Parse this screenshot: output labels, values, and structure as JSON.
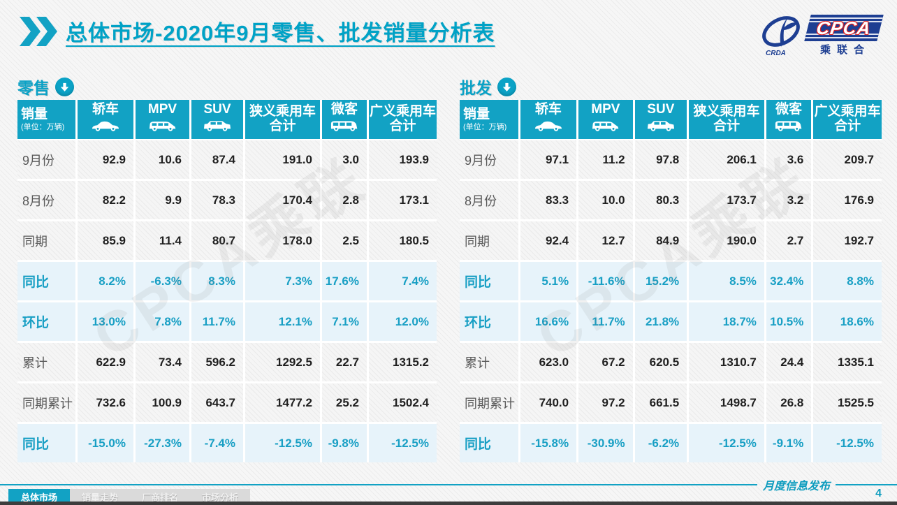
{
  "title": "总体市场-2020年9月零售、批发销量分析表",
  "logo": {
    "cpca": "CPCA",
    "crda": "CRDA",
    "subtitle": "乘联合"
  },
  "watermark": "CPCA乘联",
  "columns": [
    {
      "key": "sales",
      "label": "销量",
      "sublabel": "(单位：万辆)",
      "icon": null
    },
    {
      "key": "sedan",
      "label": "轿车",
      "icon": "sedan-icon"
    },
    {
      "key": "mpv",
      "label": "MPV",
      "icon": "mpv-icon"
    },
    {
      "key": "suv",
      "label": "SUV",
      "icon": "suv-icon"
    },
    {
      "key": "narrow",
      "label": "狭义乘用车",
      "label2": "合计",
      "icon": null
    },
    {
      "key": "micro",
      "label": "微客",
      "icon": "van-icon"
    },
    {
      "key": "broad",
      "label": "广义乘用车",
      "label2": "合计",
      "icon": null
    }
  ],
  "tables": [
    {
      "id": "retail",
      "section_label": "零售",
      "rows": [
        {
          "label": "9月份",
          "type": "normal",
          "values": [
            "92.9",
            "10.6",
            "87.4",
            "191.0",
            "3.0",
            "193.9"
          ]
        },
        {
          "label": "8月份",
          "type": "normal",
          "values": [
            "82.2",
            "9.9",
            "78.3",
            "170.4",
            "2.8",
            "173.1"
          ]
        },
        {
          "label": "同期",
          "type": "normal",
          "values": [
            "85.9",
            "11.4",
            "80.7",
            "178.0",
            "2.5",
            "180.5"
          ]
        },
        {
          "label": "同比",
          "type": "percent",
          "values": [
            "8.2%",
            "-6.3%",
            "8.3%",
            "7.3%",
            "17.6%",
            "7.4%"
          ]
        },
        {
          "label": "环比",
          "type": "percent",
          "values": [
            "13.0%",
            "7.8%",
            "11.7%",
            "12.1%",
            "7.1%",
            "12.0%"
          ]
        },
        {
          "label": "累计",
          "type": "normal",
          "values": [
            "622.9",
            "73.4",
            "596.2",
            "1292.5",
            "22.7",
            "1315.2"
          ]
        },
        {
          "label": "同期累计",
          "type": "normal",
          "values": [
            "732.6",
            "100.9",
            "643.7",
            "1477.2",
            "25.2",
            "1502.4"
          ]
        },
        {
          "label": "同比",
          "type": "percent",
          "values": [
            "-15.0%",
            "-27.3%",
            "-7.4%",
            "-12.5%",
            "-9.8%",
            "-12.5%"
          ]
        }
      ]
    },
    {
      "id": "wholesale",
      "section_label": "批发",
      "rows": [
        {
          "label": "9月份",
          "type": "normal",
          "values": [
            "97.1",
            "11.2",
            "97.8",
            "206.1",
            "3.6",
            "209.7"
          ]
        },
        {
          "label": "8月份",
          "type": "normal",
          "values": [
            "83.3",
            "10.0",
            "80.3",
            "173.7",
            "3.2",
            "176.9"
          ]
        },
        {
          "label": "同期",
          "type": "normal",
          "values": [
            "92.4",
            "12.7",
            "84.9",
            "190.0",
            "2.7",
            "192.7"
          ]
        },
        {
          "label": "同比",
          "type": "percent",
          "values": [
            "5.1%",
            "-11.6%",
            "15.2%",
            "8.5%",
            "32.4%",
            "8.8%"
          ]
        },
        {
          "label": "环比",
          "type": "percent",
          "values": [
            "16.6%",
            "11.7%",
            "21.8%",
            "18.7%",
            "10.5%",
            "18.6%"
          ]
        },
        {
          "label": "累计",
          "type": "normal",
          "values": [
            "623.0",
            "67.2",
            "620.5",
            "1310.7",
            "24.4",
            "1335.1"
          ]
        },
        {
          "label": "同期累计",
          "type": "normal",
          "values": [
            "740.0",
            "97.2",
            "661.5",
            "1498.7",
            "26.8",
            "1525.5"
          ]
        },
        {
          "label": "同比",
          "type": "percent",
          "values": [
            "-15.8%",
            "-30.9%",
            "-6.2%",
            "-12.5%",
            "-9.1%",
            "-12.5%"
          ]
        }
      ]
    }
  ],
  "footer": {
    "tag": "月度信息发布",
    "page": "4",
    "tabs": [
      {
        "label": "总体市场",
        "active": true
      },
      {
        "label": "销量走势",
        "active": false
      },
      {
        "label": "厂商排名",
        "active": false
      },
      {
        "label": "市场分析",
        "active": false
      }
    ]
  },
  "colors": {
    "accent": "#12a2c4",
    "percent_bg": "#e7f3fa",
    "navy": "#1d3e92"
  }
}
